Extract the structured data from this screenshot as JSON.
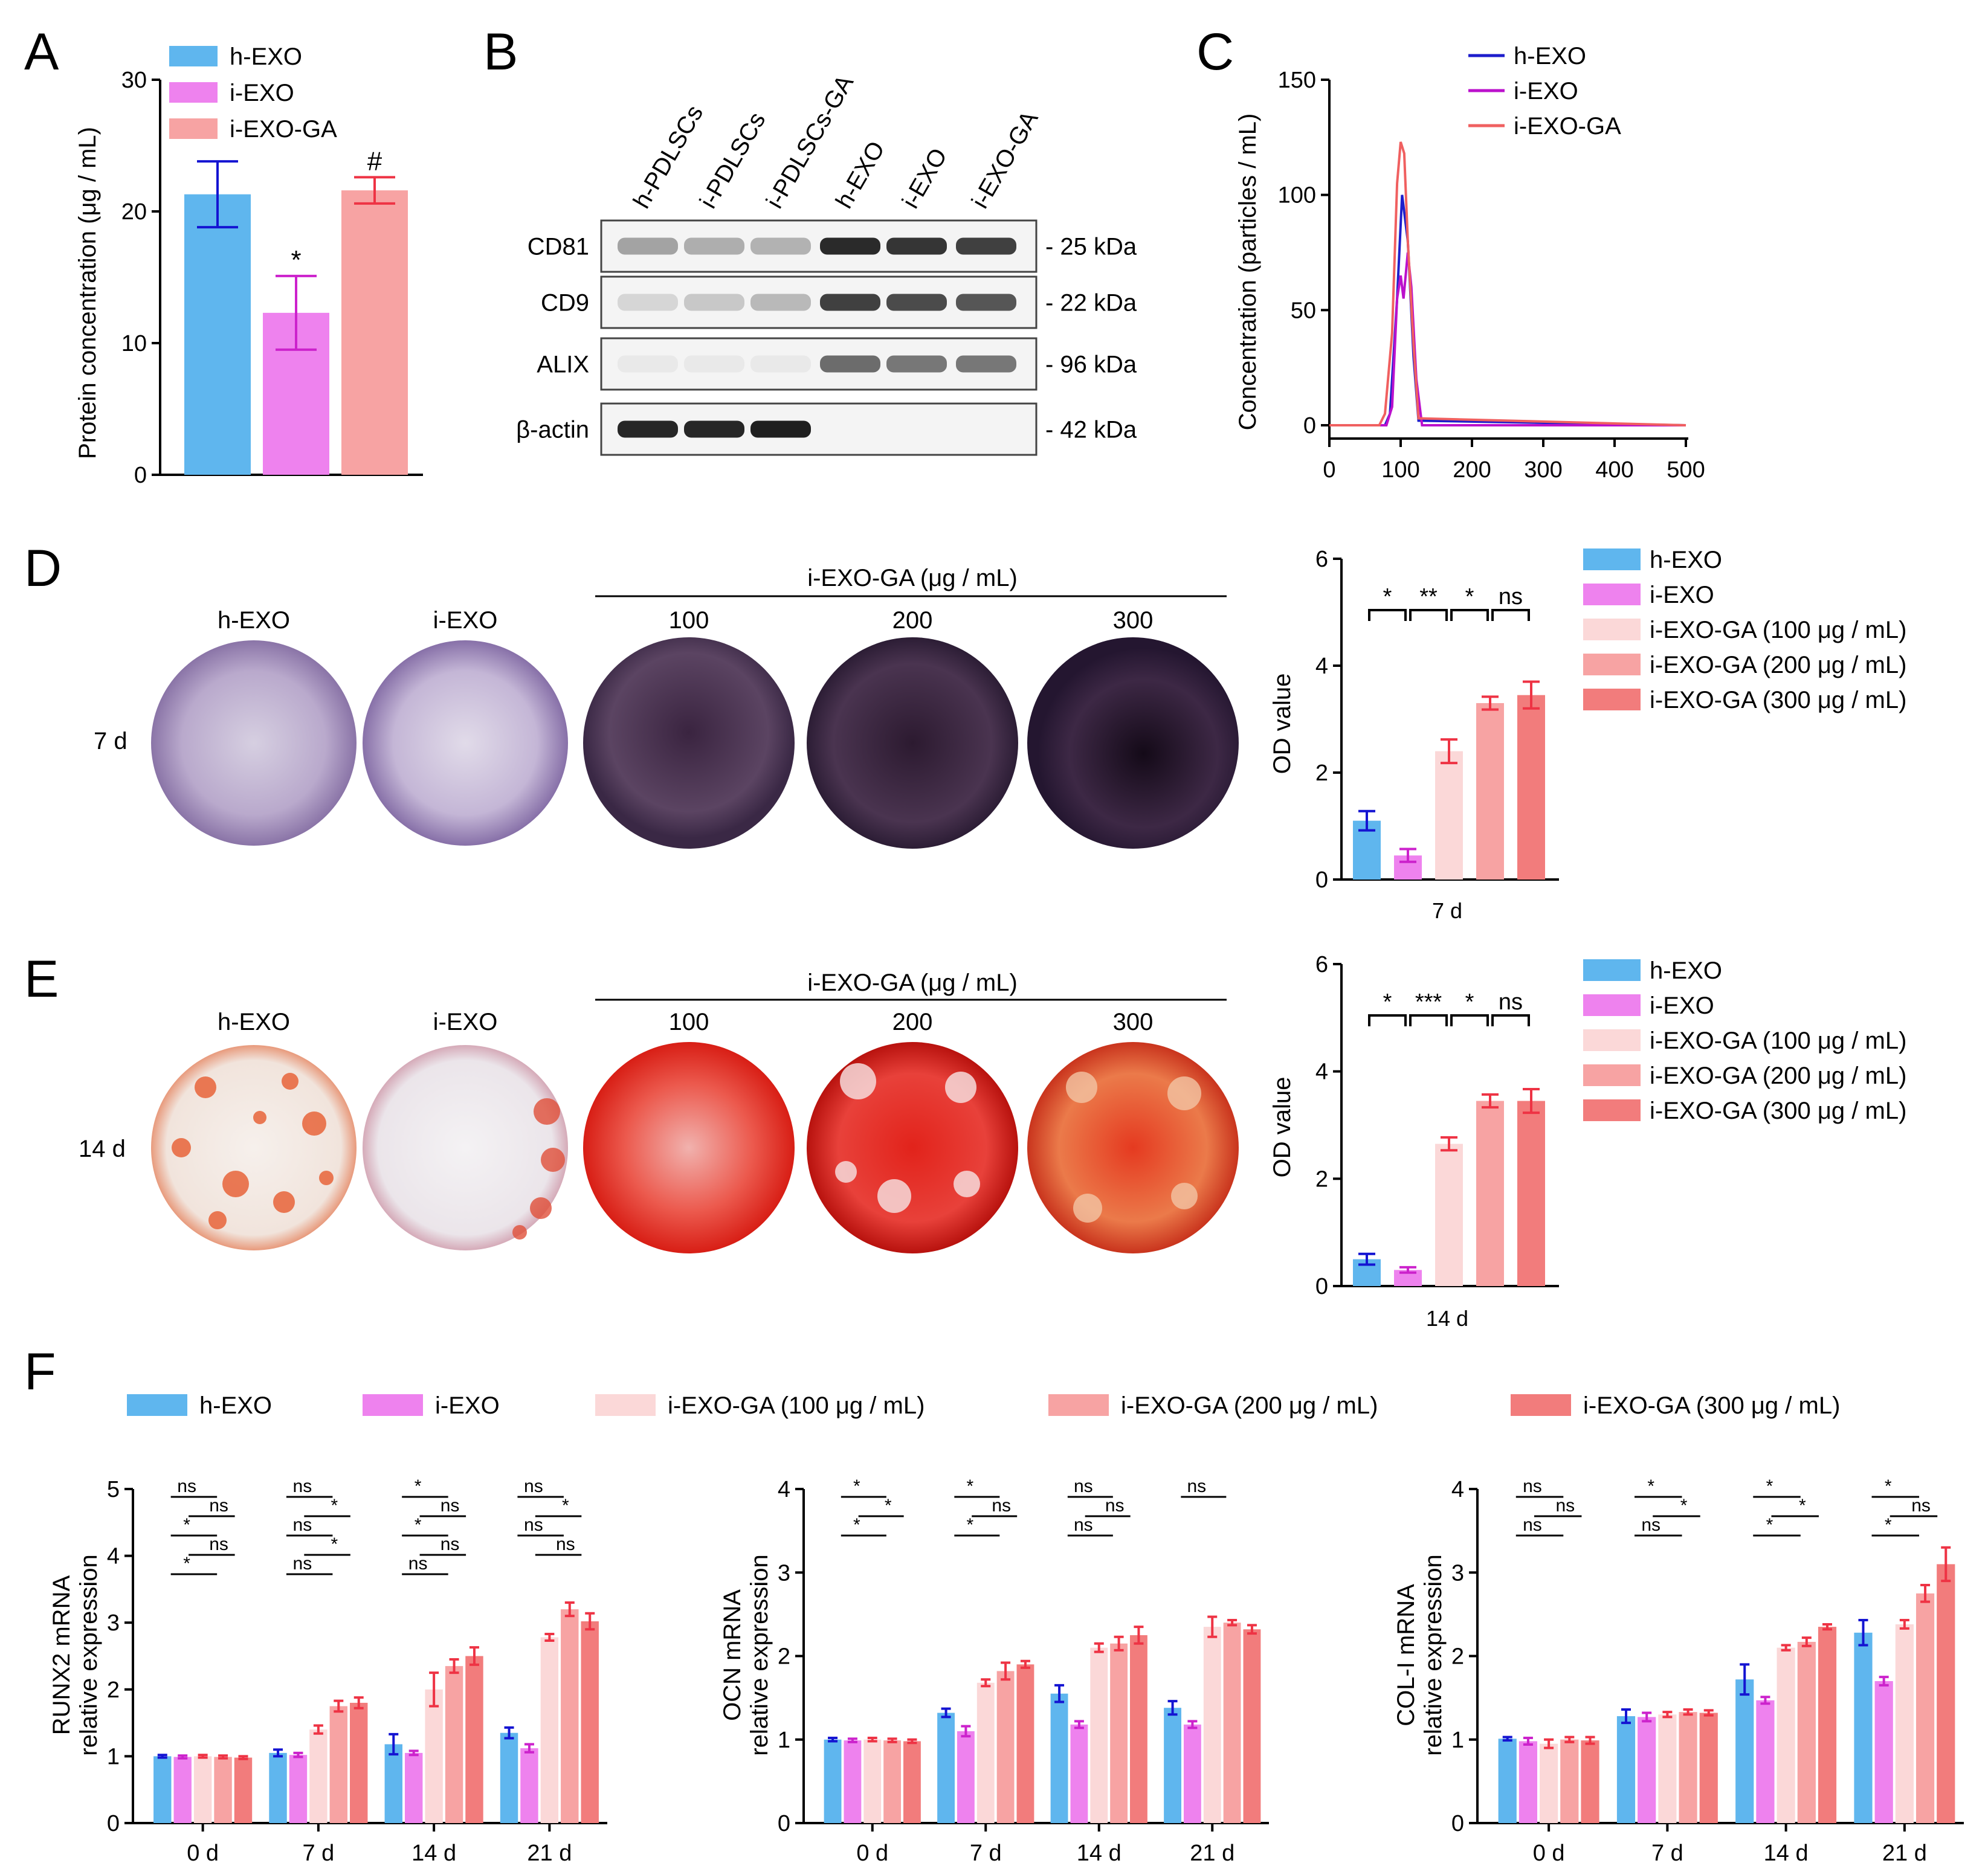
{
  "panel_letters": {
    "A": "A",
    "B": "B",
    "C": "C",
    "D": "D",
    "E": "E",
    "F": "F"
  },
  "colors": {
    "h": "#5fb6ee",
    "i": "#ee82ee",
    "g100": "#fbd8d8",
    "g200": "#f7a3a3",
    "g300": "#f27c7c",
    "h_err": "#1414d2",
    "i_err": "#cc22cc",
    "g_err": "#ee3344",
    "lineH": "#1e1ecc",
    "lineI": "#bb11cc",
    "lineG": "#f06060"
  },
  "chart_data": [
    {
      "id": "A",
      "type": "bar",
      "ylabel": "Protein concentration (μg / mL)",
      "ylim": [
        0,
        30
      ],
      "yticks": [
        "0",
        "10",
        "20",
        "30"
      ],
      "legend": [
        "h-EXO",
        "i-EXO",
        "i-EXO-GA"
      ],
      "categories": [
        "h-EXO",
        "i-EXO",
        "i-EXO-GA"
      ],
      "values": [
        21.3,
        12.3,
        21.6
      ],
      "errors": [
        2.5,
        2.8,
        1.0
      ],
      "annotations": [
        "",
        "*",
        "#"
      ]
    },
    {
      "id": "B",
      "type": "western_blot",
      "lanes": [
        "h-PDLSCs",
        "i-PDLSCs",
        "i-PDLSCs-GA",
        "h-EXO",
        "i-EXO",
        "i-EXO-GA"
      ],
      "rows": [
        {
          "label": "CD81",
          "size": "- 25 kDa",
          "intensity": [
            0.35,
            0.3,
            0.28,
            0.9,
            0.85,
            0.8
          ]
        },
        {
          "label": "CD9",
          "size": "- 22 kDa",
          "intensity": [
            0.12,
            0.18,
            0.25,
            0.8,
            0.75,
            0.7
          ]
        },
        {
          "label": "ALIX",
          "size": "- 96 kDa",
          "intensity": [
            0.03,
            0.03,
            0.03,
            0.6,
            0.55,
            0.55
          ]
        },
        {
          "label": "β-actin",
          "size": "- 42 kDa",
          "intensity": [
            0.92,
            0.92,
            0.95,
            0.0,
            0.0,
            0.0
          ]
        }
      ]
    },
    {
      "id": "C",
      "type": "line",
      "ylabel": "Concentration (particles / mL)",
      "xlim": [
        0,
        500
      ],
      "ylim": [
        0,
        150
      ],
      "xticks": [
        "0",
        "100",
        "200",
        "300",
        "400",
        "500"
      ],
      "yticks": [
        "0",
        "50",
        "100",
        "150"
      ],
      "series": [
        {
          "name": "h-EXO",
          "x": [
            0,
            78,
            85,
            95,
            102,
            110,
            118,
            125,
            500
          ],
          "y": [
            0,
            0,
            5,
            55,
            100,
            80,
            30,
            2,
            0
          ]
        },
        {
          "name": "i-EXO",
          "x": [
            0,
            80,
            88,
            95,
            100,
            104,
            110,
            115,
            122,
            130,
            500
          ],
          "y": [
            0,
            0,
            8,
            55,
            65,
            55,
            75,
            60,
            20,
            0,
            0
          ]
        },
        {
          "name": "i-EXO-GA",
          "x": [
            0,
            70,
            78,
            88,
            95,
            100,
            105,
            110,
            118,
            125,
            500
          ],
          "y": [
            0,
            0,
            5,
            40,
            105,
            123,
            118,
            80,
            35,
            3,
            0
          ]
        }
      ]
    },
    {
      "id": "D",
      "type": "bar",
      "ylabel": "OD value",
      "xlabel": "7 d",
      "ylim": [
        0,
        6
      ],
      "yticks": [
        "0",
        "2",
        "4",
        "6"
      ],
      "legend": [
        "h-EXO",
        "i-EXO",
        "i-EXO-GA (100 μg / mL)",
        "i-EXO-GA (200 μg / mL)",
        "i-EXO-GA (300 μg / mL)"
      ],
      "values": [
        1.1,
        0.45,
        2.4,
        3.3,
        3.45
      ],
      "errors": [
        0.18,
        0.12,
        0.22,
        0.12,
        0.25
      ],
      "sig": [
        "*",
        "**",
        "*",
        "ns"
      ]
    },
    {
      "id": "E",
      "type": "bar",
      "ylabel": "OD value",
      "xlabel": "14 d",
      "ylim": [
        0,
        6
      ],
      "yticks": [
        "0",
        "2",
        "4",
        "6"
      ],
      "legend": [
        "h-EXO",
        "i-EXO",
        "i-EXO-GA (100 μg / mL)",
        "i-EXO-GA (200 μg / mL)",
        "i-EXO-GA (300 μg / mL)"
      ],
      "values": [
        0.5,
        0.3,
        2.65,
        3.45,
        3.45
      ],
      "errors": [
        0.1,
        0.05,
        0.12,
        0.12,
        0.22
      ],
      "sig": [
        "*",
        "***",
        "*",
        "ns"
      ]
    },
    {
      "id": "F1",
      "type": "bar",
      "ylabel": "RUNX2 mRNA",
      "ylabel2": "relative expression",
      "ylim": [
        0,
        5
      ],
      "yticks": [
        "0",
        "1",
        "2",
        "3",
        "4",
        "5"
      ],
      "categories": [
        "0 d",
        "7 d",
        "14 d",
        "21 d"
      ],
      "series": [
        {
          "name": "h-EXO",
          "values": [
            1.0,
            1.05,
            1.18,
            1.35
          ],
          "errors": [
            0.02,
            0.05,
            0.15,
            0.08
          ]
        },
        {
          "name": "i-EXO",
          "values": [
            0.99,
            1.02,
            1.05,
            1.12
          ],
          "errors": [
            0.02,
            0.03,
            0.03,
            0.06
          ]
        },
        {
          "name": "i-EXO-GA (100 μg / mL)",
          "values": [
            1.0,
            1.4,
            2.0,
            2.78
          ],
          "errors": [
            0.02,
            0.06,
            0.25,
            0.05
          ]
        },
        {
          "name": "i-EXO-GA (200 μg / mL)",
          "values": [
            0.99,
            1.75,
            2.35,
            3.2
          ],
          "errors": [
            0.02,
            0.08,
            0.1,
            0.1
          ]
        },
        {
          "name": "i-EXO-GA (300 μg / mL)",
          "values": [
            0.98,
            1.8,
            2.5,
            3.02
          ],
          "errors": [
            0.02,
            0.08,
            0.13,
            0.12
          ]
        }
      ],
      "group_labels": [
        "ns",
        "ns",
        "*",
        "ns",
        "*",
        "ns",
        "*",
        "ns",
        "*",
        "ns",
        "*",
        "ns",
        "*",
        "ns",
        "ns",
        "ns",
        "*",
        "ns",
        "ns"
      ]
    },
    {
      "id": "F2",
      "type": "bar",
      "ylabel": "OCN mRNA",
      "ylabel2": "relative expression",
      "ylim": [
        0,
        4
      ],
      "yticks": [
        "0",
        "1",
        "2",
        "3",
        "4"
      ],
      "categories": [
        "0 d",
        "7 d",
        "14 d",
        "21 d"
      ],
      "series": [
        {
          "name": "h-EXO",
          "values": [
            1.0,
            1.32,
            1.55,
            1.38
          ],
          "errors": [
            0.02,
            0.05,
            0.1,
            0.08
          ]
        },
        {
          "name": "i-EXO",
          "values": [
            0.99,
            1.1,
            1.18,
            1.18
          ],
          "errors": [
            0.02,
            0.06,
            0.04,
            0.04
          ]
        },
        {
          "name": "i-EXO-GA (100 μg / mL)",
          "values": [
            1.0,
            1.68,
            2.1,
            2.35
          ],
          "errors": [
            0.02,
            0.04,
            0.05,
            0.12
          ]
        },
        {
          "name": "i-EXO-GA (200 μg / mL)",
          "values": [
            0.99,
            1.82,
            2.15,
            2.4
          ],
          "errors": [
            0.02,
            0.1,
            0.08,
            0.03
          ]
        },
        {
          "name": "i-EXO-GA (300 μg / mL)",
          "values": [
            0.98,
            1.9,
            2.25,
            2.32
          ],
          "errors": [
            0.02,
            0.04,
            0.1,
            0.05
          ]
        }
      ],
      "group_labels": [
        "*",
        "*",
        "*",
        "*",
        "ns",
        "*",
        "ns",
        "ns",
        "ns",
        "ns"
      ]
    },
    {
      "id": "F3",
      "type": "bar",
      "ylabel": "COL-I mRNA",
      "ylabel2": "relative expression",
      "ylim": [
        0,
        4
      ],
      "yticks": [
        "0",
        "1",
        "2",
        "3",
        "4"
      ],
      "categories": [
        "0 d",
        "7 d",
        "14 d",
        "21 d"
      ],
      "series": [
        {
          "name": "h-EXO",
          "values": [
            1.01,
            1.28,
            1.72,
            2.28
          ],
          "errors": [
            0.02,
            0.08,
            0.18,
            0.15
          ]
        },
        {
          "name": "i-EXO",
          "values": [
            0.98,
            1.27,
            1.47,
            1.7
          ],
          "errors": [
            0.04,
            0.05,
            0.04,
            0.05
          ]
        },
        {
          "name": "i-EXO-GA (100 μg / mL)",
          "values": [
            0.95,
            1.3,
            2.1,
            2.38
          ],
          "errors": [
            0.05,
            0.03,
            0.03,
            0.05
          ]
        },
        {
          "name": "i-EXO-GA (200 μg / mL)",
          "values": [
            1.0,
            1.33,
            2.17,
            2.75
          ],
          "errors": [
            0.03,
            0.03,
            0.05,
            0.1
          ]
        },
        {
          "name": "i-EXO-GA (300 μg / mL)",
          "values": [
            0.99,
            1.32,
            2.35,
            3.1
          ],
          "errors": [
            0.04,
            0.03,
            0.03,
            0.2
          ]
        }
      ],
      "group_labels": [
        "ns",
        "ns",
        "ns",
        "*",
        "*",
        "ns",
        "*",
        "*",
        "*",
        "*",
        "ns",
        "*"
      ]
    }
  ],
  "stain_panels": {
    "top_label": "i-EXO-GA   (μg / mL)",
    "column_labels": [
      "h-EXO",
      "i-EXO",
      "100",
      "200",
      "300"
    ],
    "D_row_label": "7 d",
    "E_row_label": "14 d"
  },
  "legend_F": [
    "h-EXO",
    "i-EXO",
    "i-EXO-GA (100 μg / mL)",
    "i-EXO-GA (200 μg / mL)",
    "i-EXO-GA (300 μg / mL)"
  ]
}
